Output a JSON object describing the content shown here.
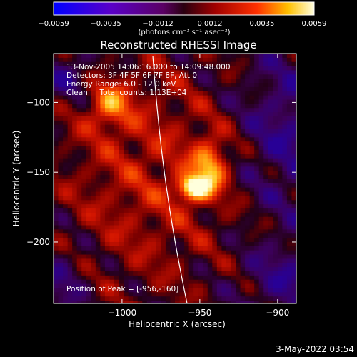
{
  "colorbar": {
    "ticks": [
      "-0.0059",
      "-0.0035",
      "-0.0012",
      "0.0012",
      "0.0035",
      "0.0059"
    ],
    "units": "(photons cm⁻² s⁻¹ asec⁻²)"
  },
  "chart_data": {
    "type": "heatmap",
    "title": "Reconstructed RHESSI Image",
    "xlabel": "Heliocentric X (arcsec)",
    "ylabel": "Heliocentric Y (arcsec)",
    "xlim": [
      -1044,
      -888
    ],
    "ylim": [
      -244,
      -65
    ],
    "xticks": [
      -1000,
      -950,
      -900
    ],
    "xtick_labels": [
      "−1000",
      "−950",
      "−900"
    ],
    "yticks": [
      -100,
      -150,
      -200
    ],
    "ytick_labels": [
      "−100",
      "−150",
      "−200"
    ],
    "value_range": [
      -0.0059,
      0.0059
    ],
    "peak": {
      "x": -956,
      "y": -160
    },
    "annotations": {
      "time": "13-Nov-2005 14:06:16.000 to 14:09:48.000",
      "detectors": "Detectors: 3F 4F 5F 6F 7F 8F, Att 0",
      "energy": "Energy Range: 6.0 - 12.0 keV",
      "clean": "Clean     Total counts: 1.13E+04",
      "peak_label": "Position of Peak = [-956,-160]"
    }
  },
  "footer": {
    "date": "3-May-2022 03:54"
  },
  "colors": {
    "background": "#000000",
    "text": "#ffffff"
  }
}
